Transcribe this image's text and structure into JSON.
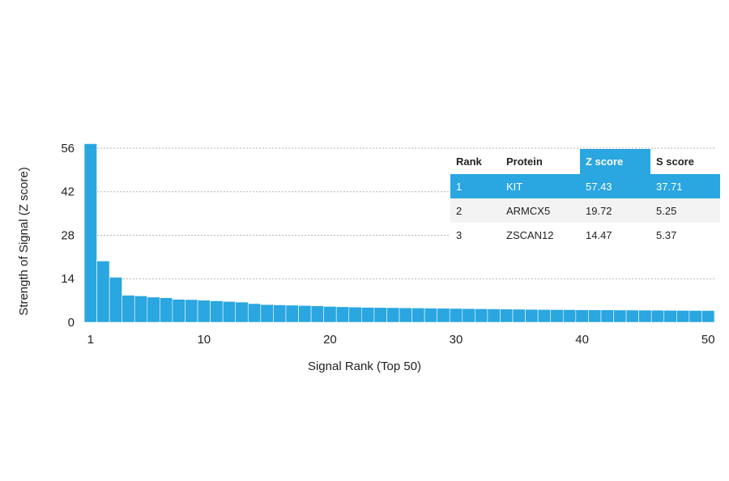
{
  "chart_data": {
    "type": "bar",
    "title": "",
    "xlabel": "Signal Rank (Top 50)",
    "ylabel": "Strength of Signal (Z score)",
    "ylim": [
      0,
      57.5
    ],
    "yticks": [
      0,
      14,
      28,
      42,
      56
    ],
    "xticks": [
      1,
      10,
      20,
      30,
      40,
      50
    ],
    "grid": "horizontal dotted",
    "categories": [
      1,
      2,
      3,
      4,
      5,
      6,
      7,
      8,
      9,
      10,
      11,
      12,
      13,
      14,
      15,
      16,
      17,
      18,
      19,
      20,
      21,
      22,
      23,
      24,
      25,
      26,
      27,
      28,
      29,
      30,
      31,
      32,
      33,
      34,
      35,
      36,
      37,
      38,
      39,
      40,
      41,
      42,
      43,
      44,
      45,
      46,
      47,
      48,
      49,
      50
    ],
    "values": [
      57.43,
      19.72,
      14.47,
      8.7,
      8.5,
      8.1,
      7.9,
      7.4,
      7.3,
      7.1,
      6.9,
      6.7,
      6.5,
      6.0,
      5.7,
      5.6,
      5.5,
      5.4,
      5.3,
      5.1,
      5.0,
      4.9,
      4.8,
      4.75,
      4.7,
      4.65,
      4.6,
      4.55,
      4.5,
      4.45,
      4.4,
      4.35,
      4.3,
      4.25,
      4.2,
      4.15,
      4.1,
      4.08,
      4.05,
      4.02,
      4.0,
      3.98,
      3.95,
      3.92,
      3.9,
      3.88,
      3.85,
      3.82,
      3.8,
      3.78
    ]
  },
  "table": {
    "headers": [
      "Rank",
      "Protein",
      "Z score",
      "S score"
    ],
    "rows": [
      [
        "1",
        "KIT",
        "57.43",
        "37.71"
      ],
      [
        "2",
        "ARMCX5",
        "19.72",
        "5.25"
      ],
      [
        "3",
        "ZSCAN12",
        "14.47",
        "5.37"
      ]
    ]
  },
  "colors": {
    "bar": "#2aa6e0",
    "highlight": "#2aa6e0",
    "highlight_text": "#ffffff"
  }
}
